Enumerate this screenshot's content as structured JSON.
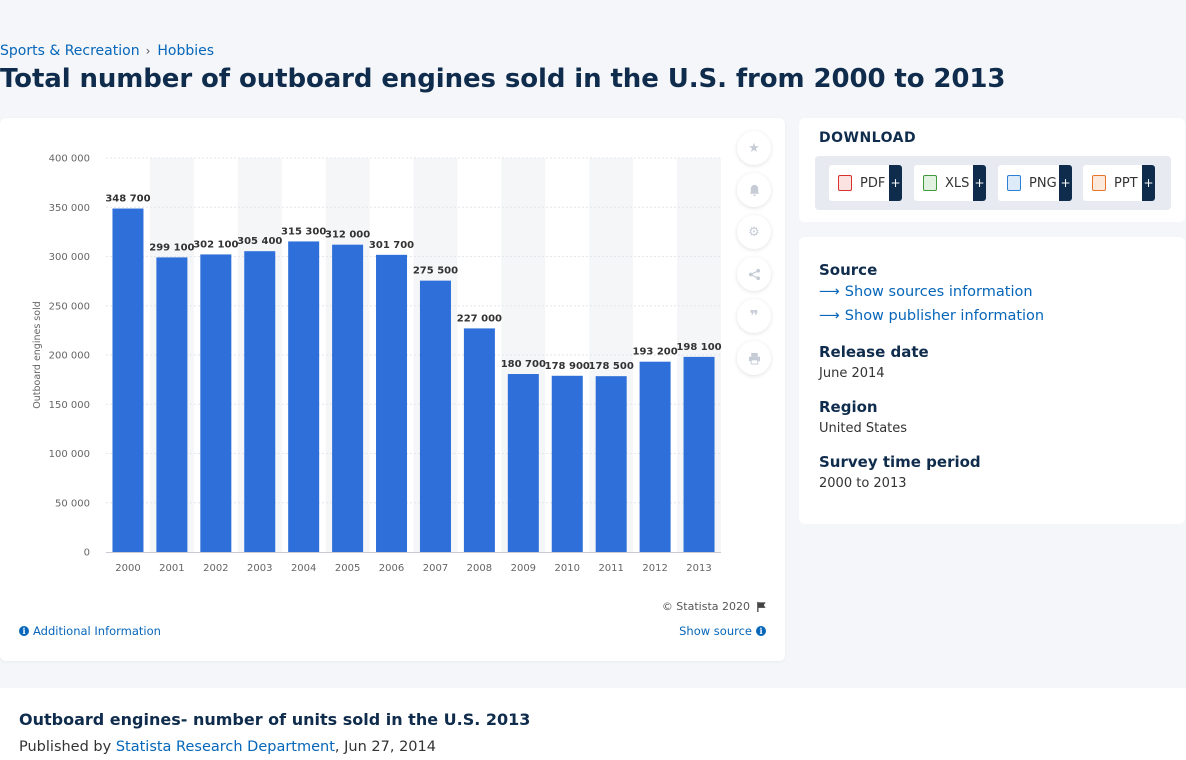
{
  "breadcrumb": {
    "parent": "Sports & Recreation",
    "current": "Hobbies"
  },
  "page_title": "Total number of outboard engines sold in the U.S. from 2000 to 2013",
  "chart_data": {
    "type": "bar",
    "title": "",
    "xlabel": "",
    "ylabel": "Outboard engines sold",
    "categories": [
      "2000",
      "2001",
      "2002",
      "2003",
      "2004",
      "2005",
      "2006",
      "2007",
      "2008",
      "2009",
      "2010",
      "2011",
      "2012",
      "2013"
    ],
    "values": [
      348700,
      299100,
      302100,
      305400,
      315300,
      312000,
      301700,
      275500,
      227000,
      180700,
      178900,
      178500,
      193200,
      198100
    ],
    "value_labels": [
      "348 700",
      "299 100",
      "302 100",
      "305 400",
      "315 300",
      "312 000",
      "301 700",
      "275 500",
      "227 000",
      "180 700",
      "178 900",
      "178 500",
      "193 200",
      "198 100"
    ],
    "ylim": [
      0,
      400000
    ],
    "yticks": [
      0,
      50000,
      100000,
      150000,
      200000,
      250000,
      300000,
      350000,
      400000
    ],
    "ytick_labels": [
      "0",
      "50 000",
      "100 000",
      "150 000",
      "200 000",
      "250 000",
      "300 000",
      "350 000",
      "400 000"
    ],
    "grid": true,
    "legend": "none",
    "bar_color": "#2e6fd9",
    "band_color": "#f5f6f8"
  },
  "chart_card": {
    "copyright": "© Statista 2020",
    "additional_info": "Additional Information",
    "show_source": "Show source"
  },
  "tools": [
    "star-icon",
    "bell-icon",
    "gear-icon",
    "share-icon",
    "quote-icon",
    "print-icon"
  ],
  "download": {
    "title": "DOWNLOAD",
    "buttons": [
      {
        "label": "PDF",
        "icon": "pdf-file-icon",
        "color": "#d9312b"
      },
      {
        "label": "XLS",
        "icon": "xls-file-icon",
        "color": "#3e9a3a"
      },
      {
        "label": "PNG",
        "icon": "png-file-icon",
        "color": "#2b7fd3"
      },
      {
        "label": "PPT",
        "icon": "ppt-file-icon",
        "color": "#e8742a"
      }
    ],
    "plus": "+"
  },
  "info": {
    "source_heading": "Source",
    "show_sources": "Show sources information",
    "show_publisher": "Show publisher information",
    "release_heading": "Release date",
    "release_value": "June 2014",
    "region_heading": "Region",
    "region_value": "United States",
    "period_heading": "Survey time period",
    "period_value": "2000 to 2013"
  },
  "bottom": {
    "title": "Outboard engines- number of units sold in the U.S. 2013",
    "published_by": "Published by",
    "publisher": "Statista Research Department",
    "date": ", Jun 27, 2014"
  }
}
